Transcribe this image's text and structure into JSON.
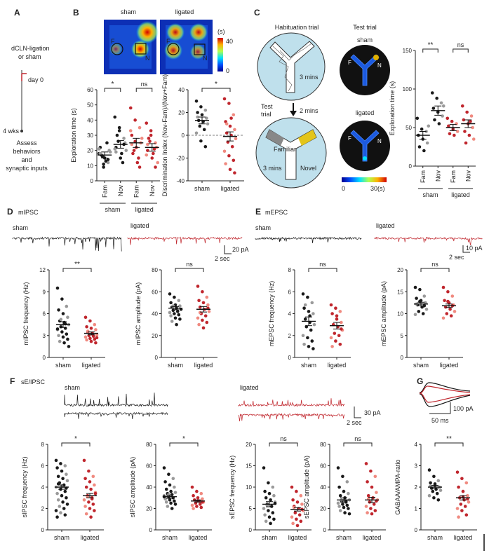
{
  "panels": {
    "A": {
      "letter": "A",
      "line1": "dCLN-ligation",
      "line2": "or sham",
      "day0": "day 0",
      "wks": "4 wks",
      "assess1": "Assess",
      "assess2": "behaviors",
      "assess3": "and",
      "assess4": "synaptic inputs"
    },
    "B": {
      "letter": "B",
      "map_sham": "sham",
      "map_ligated": "ligated",
      "colorbar_unit": "(s)",
      "colorbar_max": "40",
      "colorbar_min": "0",
      "label_F": "F",
      "label_N": "N"
    },
    "C": {
      "letter": "C",
      "habituation": "Habituation trial",
      "three_mins": "3 mins",
      "test_trial": "Test trial",
      "test_trial_a": "Test",
      "test_trial_b": "trial",
      "two_mins": "2 mins",
      "familiar": "Familiar",
      "novel": "Novel",
      "sham": "sham",
      "ligated": "ligated",
      "scale_min": "0",
      "scale_max": "30(s)",
      "label_F": "F",
      "label_N": "N"
    },
    "D": {
      "letter": "D",
      "title": "mIPSC",
      "sham": "sham",
      "ligated": "ligated",
      "scale_y": "20 pA",
      "scale_x": "2 sec"
    },
    "E": {
      "letter": "E",
      "title": "mEPSC",
      "sham": "sham",
      "ligated": "ligated",
      "scale_y": "10 pA",
      "scale_x": "2 sec"
    },
    "F": {
      "letter": "F",
      "title": "sE/IPSC",
      "sham": "sham",
      "ligated": "ligated",
      "scale_y": "30 pA",
      "scale_x": "2 sec"
    },
    "G": {
      "letter": "G",
      "scale_y": "100 pA",
      "scale_x": "50 ms"
    }
  },
  "colors": {
    "sham": "#1a1a1a",
    "ligated": "#c0262d",
    "sham_light": "#9a9a9a",
    "ligated_light": "#f08a80",
    "blue_point": "#2a3f8f",
    "arena": "#bfe0ec"
  },
  "chart_data": [
    {
      "id": "B-exploration",
      "type": "scatter",
      "ylabel": "Exploration time (s)",
      "ylim": [
        0,
        60
      ],
      "yticks": [
        0,
        10,
        20,
        30,
        40,
        50,
        60
      ],
      "groups": [
        "sham",
        "ligated"
      ],
      "categories": [
        "Fam",
        "Nov",
        "Fam",
        "Nov"
      ],
      "series": [
        {
          "values": [
            18,
            9,
            12,
            22,
            15,
            20,
            17,
            13,
            19,
            16,
            25,
            21,
            11,
            14,
            18
          ],
          "mean": 17,
          "sem": 2
        },
        {
          "values": [
            42,
            33,
            28,
            22,
            15,
            25,
            30,
            18,
            20,
            26,
            12,
            21,
            35,
            24,
            19
          ],
          "mean": 24,
          "sem": 2.5
        },
        {
          "values": [
            48,
            40,
            35,
            30,
            22,
            25,
            18,
            12,
            28,
            20,
            15,
            33,
            26,
            9,
            24
          ],
          "mean": 25,
          "sem": 3
        },
        {
          "values": [
            38,
            30,
            25,
            20,
            15,
            22,
            28,
            18,
            12,
            26,
            21,
            17,
            33,
            9,
            24
          ],
          "mean": 22,
          "sem": 2.5
        }
      ],
      "annotations": [
        {
          "text": "*",
          "between": [
            0,
            1
          ]
        },
        {
          "text": "ns",
          "between": [
            2,
            3
          ]
        }
      ]
    },
    {
      "id": "B-discrimination",
      "type": "scatter",
      "ylabel": "Discrimination Index (Nov-Fam)/(Nov+Fam)",
      "ylim": [
        -40,
        40
      ],
      "yticks": [
        -40,
        -20,
        0,
        20,
        40
      ],
      "categories": [
        "sham",
        "ligated"
      ],
      "series": [
        {
          "values": [
            30,
            25,
            22,
            20,
            18,
            15,
            13,
            12,
            10,
            8,
            5,
            2,
            -5,
            -10,
            16
          ],
          "mean": 13,
          "sem": 3
        },
        {
          "values": [
            32,
            28,
            18,
            12,
            8,
            5,
            2,
            0,
            -3,
            -6,
            -10,
            -14,
            -18,
            -22,
            -25,
            -30,
            -33,
            10,
            15
          ],
          "mean": -1,
          "sem": 4
        }
      ],
      "annotations": [
        {
          "text": "*",
          "between": [
            0,
            1
          ]
        }
      ]
    },
    {
      "id": "C-exploration",
      "type": "scatter",
      "ylabel": "Exploration time (s)",
      "ylim": [
        0,
        150
      ],
      "yticks": [
        0,
        50,
        100,
        150
      ],
      "groups": [
        "sham",
        "ligated"
      ],
      "categories": [
        "Fam",
        "Nov",
        "Fam",
        "Nov"
      ],
      "series": [
        {
          "values": [
            62,
            48,
            45,
            40,
            35,
            30,
            25,
            20,
            52
          ],
          "mean": 40,
          "sem": 5
        },
        {
          "values": [
            95,
            88,
            82,
            75,
            70,
            65,
            60,
            55,
            78
          ],
          "mean": 72,
          "sem": 6
        },
        {
          "values": [
            62,
            58,
            55,
            52,
            48,
            45,
            42,
            40
          ],
          "mean": 50,
          "sem": 4
        },
        {
          "values": [
            78,
            70,
            65,
            60,
            55,
            50,
            45,
            40,
            35,
            30,
            58
          ],
          "mean": 55,
          "sem": 5
        }
      ],
      "annotations": [
        {
          "text": "**",
          "between": [
            0,
            1
          ]
        },
        {
          "text": "ns",
          "between": [
            2,
            3
          ]
        }
      ]
    },
    {
      "id": "D-freq",
      "type": "scatter",
      "ylabel": "mIPSC frequency (Hz)",
      "ylim": [
        0,
        12
      ],
      "yticks": [
        0,
        3,
        6,
        9,
        12
      ],
      "categories": [
        "sham",
        "ligated"
      ],
      "series": [
        {
          "values": [
            9.5,
            8,
            7,
            6.5,
            6,
            5.5,
            5,
            4.8,
            4.5,
            4.2,
            4,
            3.8,
            3.5,
            3.2,
            3,
            2.8,
            2.5,
            2.2,
            2,
            1.5,
            5.2,
            4.6,
            3.9
          ],
          "mean": 4.5,
          "sem": 0.4
        },
        {
          "values": [
            5.5,
            5,
            4.5,
            4.2,
            4,
            3.8,
            3.5,
            3.3,
            3.1,
            3,
            2.9,
            2.8,
            2.6,
            2.5,
            2.4,
            2.2,
            2,
            3.6,
            3.2,
            2.7
          ],
          "mean": 3.3,
          "sem": 0.2
        }
      ],
      "annotations": [
        {
          "text": "**",
          "between": [
            0,
            1
          ]
        }
      ]
    },
    {
      "id": "D-amp",
      "type": "scatter",
      "ylabel": "mIPSC amplitude (pA)",
      "ylim": [
        0,
        80
      ],
      "yticks": [
        0,
        20,
        40,
        60,
        80
      ],
      "categories": [
        "sham",
        "ligated"
      ],
      "series": [
        {
          "values": [
            58,
            55,
            52,
            50,
            48,
            47,
            46,
            45,
            44,
            43,
            42,
            41,
            40,
            39,
            38,
            36,
            35,
            33,
            30,
            44,
            47
          ],
          "mean": 45,
          "sem": 1.5
        },
        {
          "values": [
            65,
            60,
            55,
            52,
            50,
            48,
            46,
            44,
            42,
            40,
            38,
            36,
            34,
            32,
            30,
            27,
            45,
            41
          ],
          "mean": 44,
          "sem": 2.5
        }
      ],
      "annotations": [
        {
          "text": "ns",
          "between": [
            0,
            1
          ]
        }
      ]
    },
    {
      "id": "E-freq",
      "type": "scatter",
      "ylabel": "mEPSC frequency (Hz)",
      "ylim": [
        0,
        8
      ],
      "yticks": [
        0,
        2,
        4,
        6,
        8
      ],
      "categories": [
        "sham",
        "ligated"
      ],
      "series": [
        {
          "values": [
            5.8,
            5.5,
            5,
            4.5,
            4.2,
            4,
            3.5,
            3.2,
            3,
            2.8,
            2.5,
            2,
            1.8,
            1.5,
            1.2,
            1,
            0.8,
            4.8,
            3.8
          ],
          "mean": 3.3,
          "sem": 0.4
        },
        {
          "values": [
            4.8,
            4.5,
            4.2,
            4,
            3.5,
            3.2,
            3,
            2.8,
            2.5,
            2.2,
            2,
            1.8,
            1.5,
            1.2,
            1,
            3.8,
            2.6
          ],
          "mean": 2.9,
          "sem": 0.3
        }
      ],
      "annotations": [
        {
          "text": "ns",
          "between": [
            0,
            1
          ]
        }
      ]
    },
    {
      "id": "E-amp",
      "type": "scatter",
      "ylabel": "mEPSC amplitude (pA)",
      "ylim": [
        0,
        20
      ],
      "yticks": [
        0,
        5,
        10,
        15,
        20
      ],
      "categories": [
        "sham",
        "ligated"
      ],
      "series": [
        {
          "values": [
            16,
            15.5,
            14,
            13.5,
            13,
            12.5,
            12,
            11.5,
            11,
            10.5,
            10,
            9.8,
            12.8,
            11.8,
            12.2
          ],
          "mean": 12.2,
          "sem": 0.4
        },
        {
          "values": [
            16,
            15,
            14,
            13,
            12.5,
            12,
            11.5,
            11,
            10.5,
            10,
            9.5,
            9,
            12.8,
            11.8
          ],
          "mean": 11.8,
          "sem": 0.4
        }
      ],
      "annotations": [
        {
          "text": "ns",
          "between": [
            0,
            1
          ]
        }
      ]
    },
    {
      "id": "F-sIPSC-freq",
      "type": "scatter",
      "ylabel": "sIPSC frequency (Hz)",
      "ylim": [
        0,
        8
      ],
      "yticks": [
        0,
        2,
        4,
        6,
        8
      ],
      "categories": [
        "sham",
        "ligated"
      ],
      "series": [
        {
          "values": [
            6.5,
            6.2,
            6,
            5.8,
            5.5,
            5.2,
            5,
            4.8,
            4.6,
            4.4,
            4.2,
            4,
            3.8,
            3.6,
            3.4,
            3.2,
            3,
            2.8,
            2.6,
            2.4,
            2.2,
            2,
            1.8,
            1.6,
            1.4,
            1.2,
            4.1,
            3.9,
            4.3
          ],
          "mean": 4,
          "sem": 0.2
        },
        {
          "values": [
            6.5,
            5.5,
            5,
            4.8,
            4.5,
            4.2,
            4,
            3.8,
            3.5,
            3.2,
            3,
            2.8,
            2.6,
            2.4,
            2.2,
            2,
            1.8,
            1.5,
            1.2,
            3.4,
            3.1,
            2.9
          ],
          "mean": 3.2,
          "sem": 0.2
        }
      ],
      "annotations": [
        {
          "text": "*",
          "between": [
            0,
            1
          ]
        }
      ]
    },
    {
      "id": "F-sIPSC-amp",
      "type": "scatter",
      "ylabel": "sIPSC amplitude (pA)",
      "ylim": [
        0,
        80
      ],
      "yticks": [
        0,
        20,
        40,
        60,
        80
      ],
      "categories": [
        "sham",
        "ligated"
      ],
      "series": [
        {
          "values": [
            58,
            52,
            48,
            45,
            42,
            40,
            38,
            36,
            35,
            34,
            33,
            32,
            31,
            30,
            29,
            28,
            27,
            26,
            25,
            24,
            22,
            20,
            31,
            33
          ],
          "mean": 31,
          "sem": 1.5
        },
        {
          "values": [
            40,
            36,
            34,
            32,
            30,
            29,
            28,
            27,
            26,
            25,
            24,
            23,
            22,
            21,
            20,
            27,
            26
          ],
          "mean": 27,
          "sem": 1
        }
      ],
      "annotations": [
        {
          "text": "*",
          "between": [
            0,
            1
          ]
        }
      ]
    },
    {
      "id": "F-sEPSC-freq",
      "type": "scatter",
      "ylabel": "sEPSC frequency (Hz)",
      "ylim": [
        0,
        20
      ],
      "yticks": [
        0,
        5,
        10,
        15,
        20
      ],
      "categories": [
        "sham",
        "ligated"
      ],
      "series": [
        {
          "values": [
            14.5,
            11,
            10,
            9,
            8.5,
            8,
            7.5,
            7,
            6.5,
            6,
            5.5,
            5,
            4.5,
            4,
            3.5,
            3,
            2.5,
            2,
            1.5,
            6.2,
            5.8
          ],
          "mean": 6,
          "sem": 0.6
        },
        {
          "values": [
            10,
            9,
            8,
            7,
            6.5,
            6,
            5.5,
            5,
            4.5,
            4,
            3.5,
            3,
            2.5,
            2,
            1.5,
            1,
            4.8,
            5.2
          ],
          "mean": 4.8,
          "sem": 0.4
        }
      ],
      "annotations": [
        {
          "text": "ns",
          "between": [
            0,
            1
          ]
        }
      ]
    },
    {
      "id": "F-sEPSC-amp",
      "type": "scatter",
      "ylabel": "sEPSC amplitude (pA)",
      "ylim": [
        0,
        80
      ],
      "yticks": [
        0,
        20,
        40,
        60,
        80
      ],
      "categories": [
        "sham",
        "ligated"
      ],
      "series": [
        {
          "values": [
            58,
            50,
            45,
            40,
            36,
            34,
            32,
            30,
            28,
            27,
            26,
            25,
            24,
            23,
            22,
            21,
            20,
            18,
            16,
            15,
            28,
            27
          ],
          "mean": 28,
          "sem": 2
        },
        {
          "values": [
            62,
            55,
            50,
            45,
            40,
            35,
            32,
            30,
            28,
            26,
            24,
            22,
            20,
            18,
            16,
            15,
            27,
            29
          ],
          "mean": 28,
          "sem": 2.5
        }
      ],
      "annotations": [
        {
          "text": "ns",
          "between": [
            0,
            1
          ]
        }
      ]
    },
    {
      "id": "G-ratio",
      "type": "scatter",
      "ylabel": "GABAA/AMPA-ratio",
      "ylim": [
        0,
        4
      ],
      "yticks": [
        0,
        1,
        2,
        3,
        4
      ],
      "categories": [
        "sham",
        "ligated"
      ],
      "series": [
        {
          "values": [
            2.8,
            2.5,
            2.3,
            2.2,
            2.1,
            2,
            1.95,
            1.9,
            1.85,
            1.8,
            1.7,
            1.6,
            1.5,
            1.4,
            2.05,
            2.15
          ],
          "mean": 2,
          "sem": 0.08
        },
        {
          "values": [
            2.7,
            2.4,
            2.2,
            2,
            1.8,
            1.6,
            1.5,
            1.4,
            1.3,
            1.2,
            1.1,
            1,
            0.9,
            0.7,
            0.6,
            1.55,
            1.45
          ],
          "mean": 1.5,
          "sem": 0.1
        }
      ],
      "annotations": [
        {
          "text": "**",
          "between": [
            0,
            1
          ]
        }
      ]
    }
  ]
}
